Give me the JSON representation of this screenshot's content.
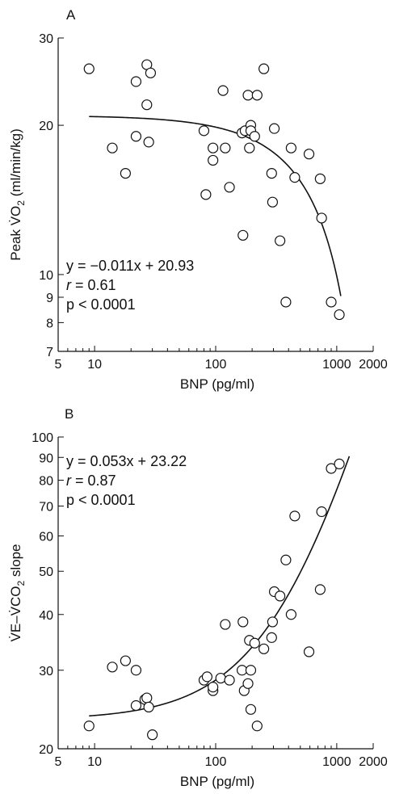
{
  "chart_data": [
    {
      "panel_label": "A",
      "type": "scatter",
      "xlabel": "BNP (pg/ml)",
      "ylabel": "Peak V̇O",
      "ylabel_sub": "2",
      "ylabel_unit": " (ml/min/kg)",
      "x_scale": "log",
      "y_scale": "log",
      "xlim": [
        5,
        2000
      ],
      "ylim": [
        7,
        30
      ],
      "x_ticks": [
        5,
        10,
        100,
        1000,
        2000
      ],
      "y_ticks": [
        7,
        8,
        9,
        10,
        20,
        30
      ],
      "annotation": {
        "equation": "y = −0.011x + 20.93",
        "r_label": "r",
        "r_value": " = 0.61",
        "p": "p < 0.0001"
      },
      "fit": {
        "slope": -0.011,
        "intercept": 20.93,
        "x_range": [
          9,
          1080
        ]
      },
      "points": [
        [
          9,
          26
        ],
        [
          14,
          18
        ],
        [
          18,
          16
        ],
        [
          22,
          24.5
        ],
        [
          22,
          19
        ],
        [
          27,
          26.5
        ],
        [
          27,
          22
        ],
        [
          28,
          18.5
        ],
        [
          29,
          25.5
        ],
        [
          80,
          19.5
        ],
        [
          83,
          14.5
        ],
        [
          95,
          18
        ],
        [
          95,
          17
        ],
        [
          115,
          23.5
        ],
        [
          120,
          18
        ],
        [
          130,
          15
        ],
        [
          165,
          19.3
        ],
        [
          168,
          12
        ],
        [
          175,
          19.5
        ],
        [
          185,
          23
        ],
        [
          190,
          18
        ],
        [
          195,
          20
        ],
        [
          195,
          19.5
        ],
        [
          210,
          19
        ],
        [
          220,
          23
        ],
        [
          250,
          26
        ],
        [
          290,
          16
        ],
        [
          295,
          14
        ],
        [
          305,
          19.7
        ],
        [
          340,
          11.7
        ],
        [
          380,
          8.8
        ],
        [
          420,
          18
        ],
        [
          450,
          15.7
        ],
        [
          590,
          17.5
        ],
        [
          730,
          15.6
        ],
        [
          750,
          13
        ],
        [
          900,
          8.8
        ],
        [
          1050,
          8.3
        ]
      ]
    },
    {
      "panel_label": "B",
      "type": "scatter",
      "xlabel": "BNP (pg/ml)",
      "ylabel": "V̇E–V̇CO",
      "ylabel_sub": "2",
      "ylabel_unit": " slope",
      "x_scale": "log",
      "y_scale": "log",
      "xlim": [
        5,
        2000
      ],
      "ylim": [
        20,
        100
      ],
      "x_ticks": [
        5,
        10,
        100,
        1000,
        2000
      ],
      "y_ticks": [
        20,
        30,
        40,
        50,
        60,
        70,
        80,
        90,
        100
      ],
      "annotation": {
        "equation": "y = 0.053x + 23.22",
        "r_label": "r",
        "r_value": " = 0.87",
        "p": "p < 0.0001"
      },
      "fit": {
        "slope": 0.053,
        "intercept": 23.22,
        "x_range": [
          9,
          1270
        ]
      },
      "points": [
        [
          9,
          22.5
        ],
        [
          14,
          30.5
        ],
        [
          18,
          31.5
        ],
        [
          22,
          30
        ],
        [
          22,
          25
        ],
        [
          26,
          25.8
        ],
        [
          27,
          26
        ],
        [
          28,
          24.8
        ],
        [
          30,
          21.5
        ],
        [
          80,
          28.5
        ],
        [
          85,
          29
        ],
        [
          95,
          27
        ],
        [
          95,
          27.5
        ],
        [
          110,
          28.8
        ],
        [
          120,
          38
        ],
        [
          130,
          28.5
        ],
        [
          165,
          30
        ],
        [
          168,
          38.5
        ],
        [
          172,
          27
        ],
        [
          185,
          28
        ],
        [
          190,
          35
        ],
        [
          195,
          30
        ],
        [
          195,
          24.5
        ],
        [
          210,
          34.5
        ],
        [
          220,
          22.5
        ],
        [
          250,
          33.5
        ],
        [
          290,
          35.5
        ],
        [
          295,
          38.5
        ],
        [
          305,
          45
        ],
        [
          340,
          44
        ],
        [
          380,
          53
        ],
        [
          420,
          40
        ],
        [
          450,
          66.5
        ],
        [
          590,
          33
        ],
        [
          730,
          45.5
        ],
        [
          750,
          68
        ],
        [
          900,
          85
        ],
        [
          1050,
          87
        ]
      ]
    }
  ]
}
